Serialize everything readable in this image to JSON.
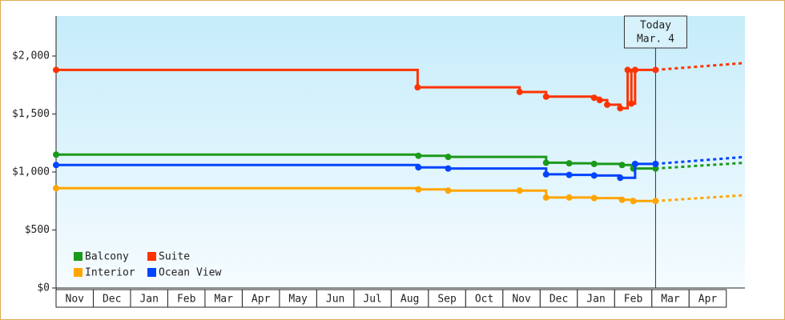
{
  "chart_data": {
    "type": "step-line",
    "categories": [
      "Nov",
      "Dec",
      "Jan",
      "Feb",
      "Mar",
      "Apr",
      "May",
      "Jun",
      "Jul",
      "Aug",
      "Sep",
      "Oct",
      "Nov",
      "Dec",
      "Jan",
      "Feb",
      "Mar",
      "Apr"
    ],
    "xlim": [
      0,
      18.5
    ],
    "ylim": [
      0,
      2345
    ],
    "yticks": [
      {
        "value": 0,
        "label": "$0"
      },
      {
        "value": 500,
        "label": "$500"
      },
      {
        "value": 1000,
        "label": "$1,000"
      },
      {
        "value": 1500,
        "label": "$1,500"
      },
      {
        "value": 2000,
        "label": "$2,000"
      }
    ],
    "grid": false,
    "legend": "lower left",
    "today": {
      "x": 16.1,
      "label": [
        "Today",
        "Mar. 4"
      ]
    },
    "series": [
      {
        "name": "Balcony",
        "color": "#1a9a1a",
        "x": [
          0,
          9.73,
          10.53,
          13.16,
          13.78,
          14.45,
          15.2,
          15.5,
          16.1
        ],
        "values": [
          1150,
          1140,
          1130,
          1080,
          1075,
          1070,
          1060,
          1030,
          1030
        ],
        "forecast": 1080
      },
      {
        "name": "Suite",
        "color": "#ff3300",
        "x": [
          0,
          9.71,
          12.45,
          13.16,
          14.45,
          14.6,
          14.8,
          15.15,
          15.35,
          15.45,
          15.55,
          16.1
        ],
        "values": [
          1880,
          1730,
          1690,
          1650,
          1640,
          1620,
          1580,
          1550,
          1880,
          1590,
          1880,
          1880
        ],
        "forecast": 1940
      },
      {
        "name": "Interior",
        "color": "#ffa500",
        "x": [
          0,
          9.73,
          10.53,
          12.45,
          13.16,
          13.78,
          14.45,
          15.2,
          15.5,
          16.1
        ],
        "values": [
          860,
          850,
          840,
          840,
          780,
          780,
          775,
          760,
          750,
          750
        ],
        "forecast": 800
      },
      {
        "name": "Ocean View",
        "color": "#0044ff",
        "x": [
          0,
          9.73,
          10.53,
          13.16,
          13.78,
          14.45,
          15.15,
          15.55,
          16.1
        ],
        "values": [
          1060,
          1040,
          1030,
          980,
          975,
          970,
          950,
          1070,
          1070
        ],
        "forecast": 1130
      }
    ]
  }
}
